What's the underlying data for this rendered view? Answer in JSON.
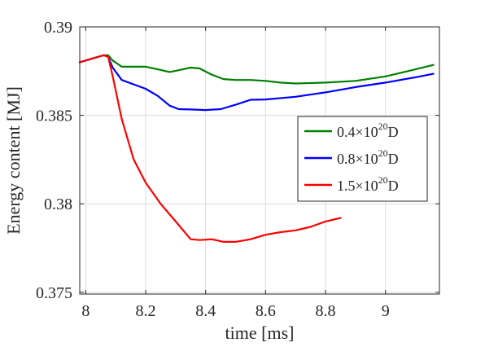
{
  "chart_data": {
    "type": "line",
    "title": "",
    "xlabel": "time [ms]",
    "ylabel": "Energy content [MJ]",
    "xlim": [
      7.98,
      9.18
    ],
    "ylim": [
      0.3749,
      0.39
    ],
    "grid": true,
    "legend_position": "center-right",
    "x_ticks": [
      8,
      8.2,
      8.4,
      8.6,
      8.8,
      9
    ],
    "x_tick_labels": [
      "8",
      "8.2",
      "8.4",
      "8.6",
      "8.8",
      "9"
    ],
    "y_ticks": [
      0.375,
      0.38,
      0.385,
      0.39
    ],
    "y_tick_labels": [
      "0.375",
      "0.38",
      "0.385",
      "0.39"
    ],
    "series": [
      {
        "name": "0.4×10^20D",
        "label_base": "0.4×10",
        "label_exp": "20",
        "label_suffix": "D",
        "color": "#008000",
        "points": [
          [
            7.98,
            0.388
          ],
          [
            8.02,
            0.3882
          ],
          [
            8.06,
            0.3884
          ],
          [
            8.075,
            0.3884
          ],
          [
            8.09,
            0.3881
          ],
          [
            8.12,
            0.38775
          ],
          [
            8.16,
            0.38775
          ],
          [
            8.2,
            0.38775
          ],
          [
            8.24,
            0.3876
          ],
          [
            8.28,
            0.38745
          ],
          [
            8.31,
            0.38755
          ],
          [
            8.35,
            0.3877
          ],
          [
            8.38,
            0.38765
          ],
          [
            8.42,
            0.3873
          ],
          [
            8.46,
            0.38705
          ],
          [
            8.5,
            0.387
          ],
          [
            8.55,
            0.387
          ],
          [
            8.6,
            0.38695
          ],
          [
            8.65,
            0.38685
          ],
          [
            8.7,
            0.3868
          ],
          [
            8.8,
            0.38685
          ],
          [
            8.9,
            0.38695
          ],
          [
            9.0,
            0.3872
          ],
          [
            9.1,
            0.3876
          ],
          [
            9.16,
            0.38785
          ]
        ]
      },
      {
        "name": "0.8×10^20D",
        "label_base": "0.8×10",
        "label_exp": "20",
        "label_suffix": "D",
        "color": "#0000ff",
        "points": [
          [
            7.98,
            0.388
          ],
          [
            8.02,
            0.3882
          ],
          [
            8.06,
            0.3884
          ],
          [
            8.075,
            0.3883
          ],
          [
            8.09,
            0.3877
          ],
          [
            8.12,
            0.387
          ],
          [
            8.16,
            0.38675
          ],
          [
            8.2,
            0.3865
          ],
          [
            8.24,
            0.3861
          ],
          [
            8.28,
            0.38555
          ],
          [
            8.31,
            0.38535
          ],
          [
            8.35,
            0.38533
          ],
          [
            8.4,
            0.3853
          ],
          [
            8.45,
            0.38535
          ],
          [
            8.5,
            0.3856
          ],
          [
            8.55,
            0.38588
          ],
          [
            8.6,
            0.3859
          ],
          [
            8.7,
            0.38605
          ],
          [
            8.8,
            0.3863
          ],
          [
            8.9,
            0.3866
          ],
          [
            9.0,
            0.38685
          ],
          [
            9.1,
            0.38715
          ],
          [
            9.16,
            0.38735
          ]
        ]
      },
      {
        "name": "1.5×10^20D",
        "label_base": "1.5×10",
        "label_exp": "20",
        "label_suffix": "D",
        "color": "#ff0000",
        "points": [
          [
            7.98,
            0.388
          ],
          [
            8.02,
            0.3882
          ],
          [
            8.06,
            0.3884
          ],
          [
            8.075,
            0.3883
          ],
          [
            8.09,
            0.3872
          ],
          [
            8.12,
            0.3848
          ],
          [
            8.16,
            0.3825
          ],
          [
            8.2,
            0.3812
          ],
          [
            8.25,
            0.38
          ],
          [
            8.3,
            0.379
          ],
          [
            8.35,
            0.378
          ],
          [
            8.38,
            0.37795
          ],
          [
            8.42,
            0.378
          ],
          [
            8.46,
            0.37785
          ],
          [
            8.5,
            0.37785
          ],
          [
            8.55,
            0.378
          ],
          [
            8.6,
            0.37825
          ],
          [
            8.65,
            0.3784
          ],
          [
            8.7,
            0.3785
          ],
          [
            8.75,
            0.3787
          ],
          [
            8.8,
            0.379
          ],
          [
            8.85,
            0.3792
          ]
        ]
      }
    ]
  }
}
